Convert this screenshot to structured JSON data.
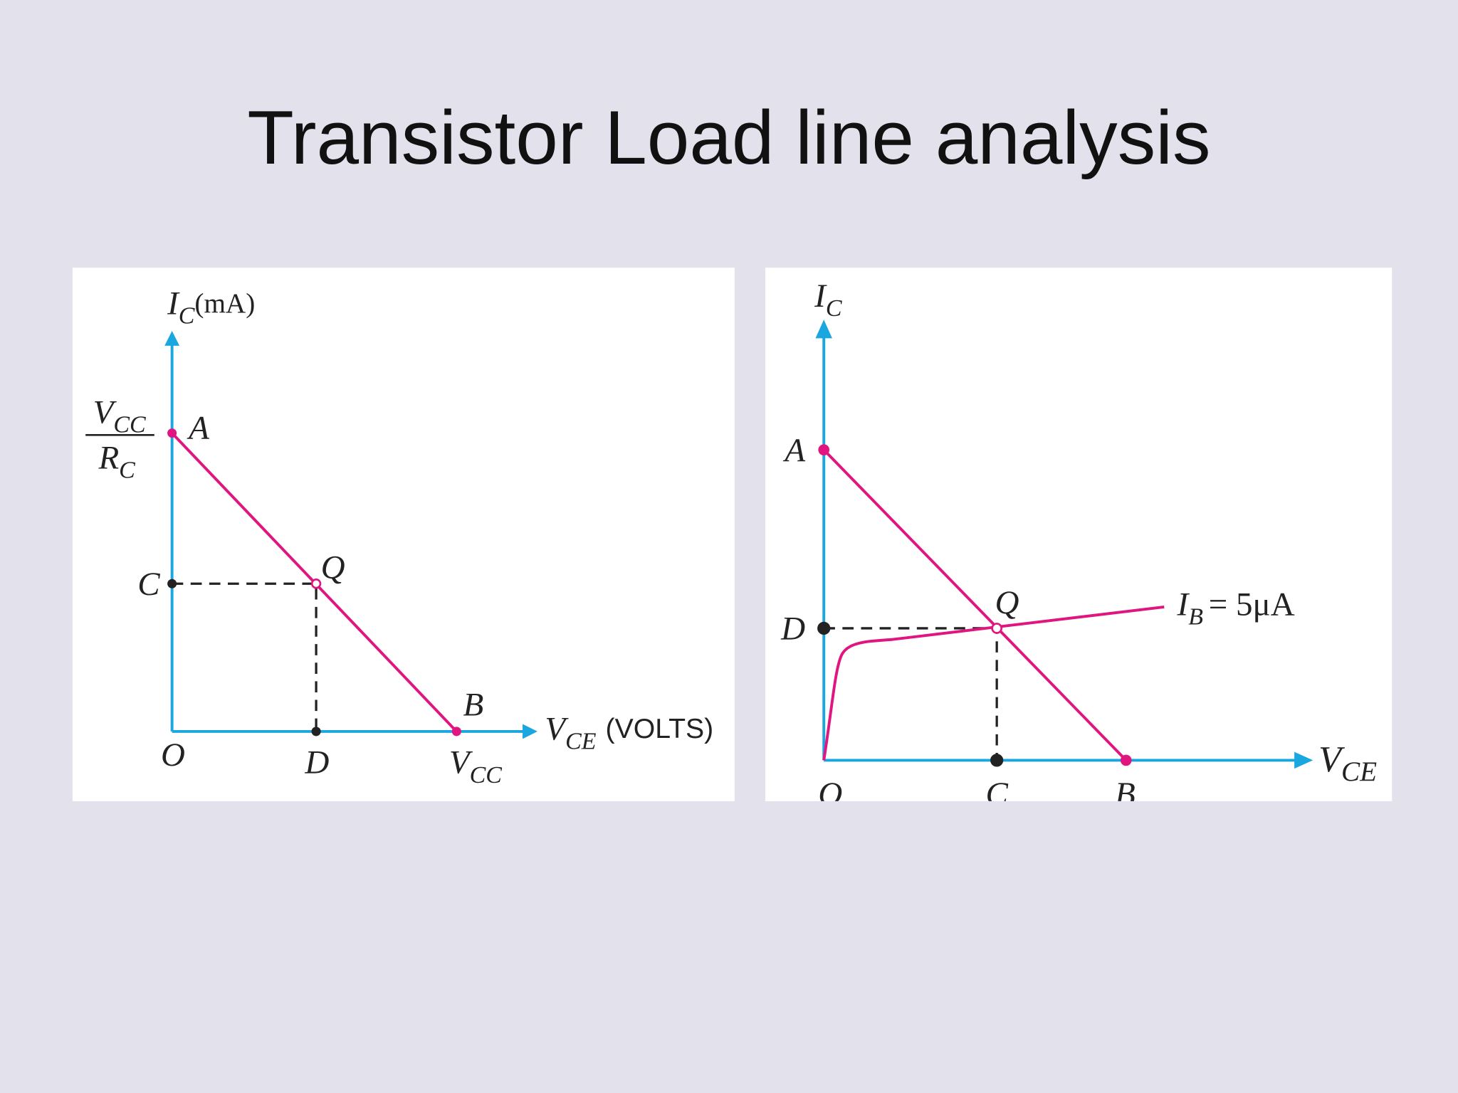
{
  "title": "Transistor Load line analysis",
  "left_diagram": {
    "y_axis_label": {
      "symbol": "I",
      "sub": "C",
      "unit": "(mA)"
    },
    "x_axis_label": {
      "symbol": "V",
      "sub": "CE",
      "unit": "(VOLTS)"
    },
    "intercept_fraction": {
      "numerator": {
        "symbol": "V",
        "sub": "CC"
      },
      "denominator": {
        "symbol": "R",
        "sub": "C"
      }
    },
    "x_intercept_label": {
      "symbol": "V",
      "sub": "CC"
    },
    "points": {
      "A": "A",
      "B": "B",
      "C": "C",
      "D": "D",
      "O": "O",
      "Q": "Q"
    }
  },
  "right_diagram": {
    "y_axis_label": {
      "symbol": "I",
      "sub": "C"
    },
    "x_axis_label": {
      "symbol": "V",
      "sub": "CE"
    },
    "curve_label": {
      "symbol": "I",
      "sub": "B",
      "rest": "= 5μA"
    },
    "points": {
      "A": "A",
      "B": "B",
      "C": "C",
      "D": "D",
      "O": "O",
      "Q": "Q"
    }
  }
}
